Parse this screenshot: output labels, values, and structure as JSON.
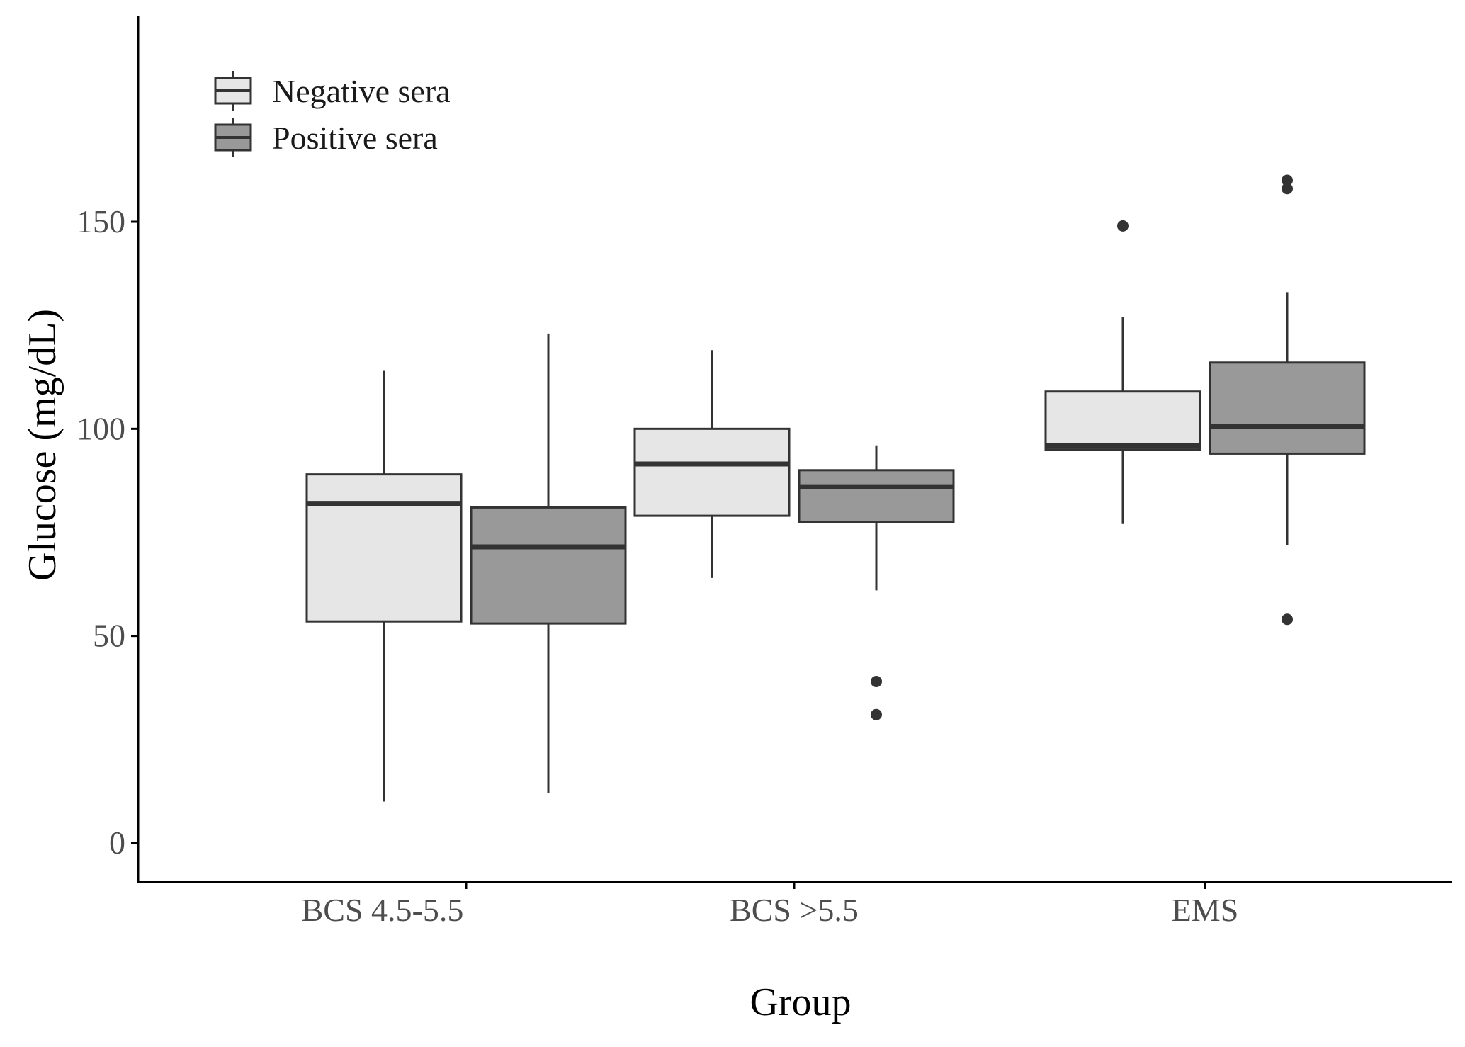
{
  "chart_data": {
    "type": "boxplot",
    "title": "",
    "xlabel": "Group",
    "ylabel": "Glucose (mg/dL)",
    "ylim": [
      -9,
      199
    ],
    "yticks": [
      0,
      50,
      100,
      150
    ],
    "categories": [
      "BCS 4.5-5.5",
      "BCS >5.5",
      "EMS"
    ],
    "legend_position": "top-left",
    "series": [
      {
        "name": "Negative sera",
        "fill": "#e6e6e6",
        "boxes": [
          {
            "group": "BCS 4.5-5.5",
            "whisker_low": 10,
            "q1": 53.5,
            "median": 82,
            "q3": 89,
            "whisker_high": 114,
            "outliers": []
          },
          {
            "group": "BCS >5.5",
            "whisker_low": 64,
            "q1": 79,
            "median": 91.5,
            "q3": 100,
            "whisker_high": 119,
            "outliers": []
          },
          {
            "group": "EMS",
            "whisker_low": 77,
            "q1": 95,
            "median": 96,
            "q3": 109,
            "whisker_high": 127,
            "outliers": [
              149
            ]
          }
        ]
      },
      {
        "name": "Positive sera",
        "fill": "#999999",
        "boxes": [
          {
            "group": "BCS 4.5-5.5",
            "whisker_low": 12,
            "q1": 53,
            "median": 71.5,
            "q3": 81,
            "whisker_high": 123,
            "outliers": []
          },
          {
            "group": "BCS >5.5",
            "whisker_low": 61,
            "q1": 77.5,
            "median": 86,
            "q3": 90,
            "whisker_high": 96,
            "outliers": [
              39,
              31
            ]
          },
          {
            "group": "EMS",
            "whisker_low": 72,
            "q1": 94,
            "median": 100.5,
            "q3": 116,
            "whisker_high": 133,
            "outliers": [
              160,
              158,
              54
            ]
          }
        ]
      }
    ]
  }
}
